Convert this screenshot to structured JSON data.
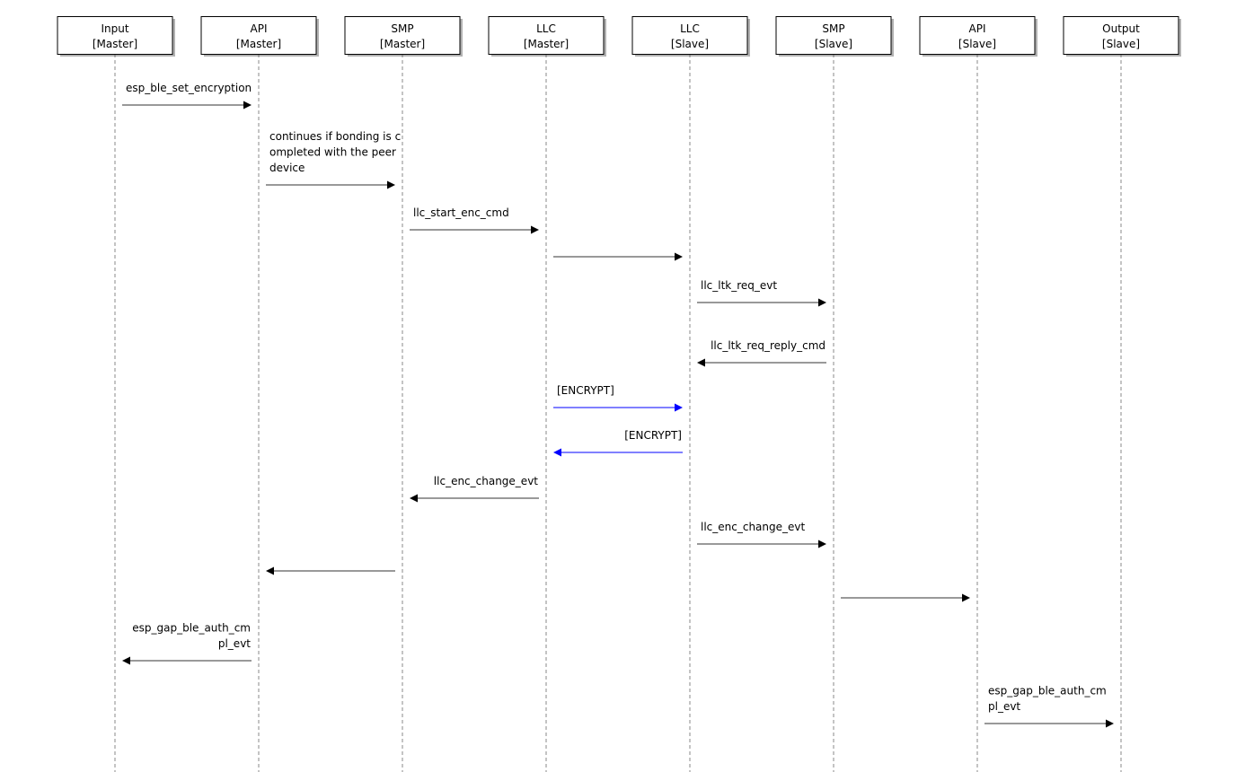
{
  "participants": [
    {
      "name": "Input",
      "role": "[Master]"
    },
    {
      "name": "API",
      "role": "[Master]"
    },
    {
      "name": "SMP",
      "role": "[Master]"
    },
    {
      "name": "LLC",
      "role": "[Master]"
    },
    {
      "name": "LLC",
      "role": "[Slave]"
    },
    {
      "name": "SMP",
      "role": "[Slave]"
    },
    {
      "name": "API",
      "role": "[Slave]"
    },
    {
      "name": "Output",
      "role": "[Slave]"
    }
  ],
  "colors": {
    "default": "#000000",
    "encrypt": "#0000ff"
  },
  "messages": [
    {
      "from": 0,
      "to": 1,
      "lines": [
        "esp_ble_set_encryption"
      ],
      "color": "default"
    },
    {
      "from": 1,
      "to": 2,
      "lines": [
        "continues if bonding is c",
        "ompleted with the peer",
        "device"
      ],
      "color": "default"
    },
    {
      "from": 2,
      "to": 3,
      "lines": [
        "llc_start_enc_cmd"
      ],
      "color": "default"
    },
    {
      "from": 3,
      "to": 4,
      "lines": [],
      "color": "default"
    },
    {
      "from": 4,
      "to": 5,
      "lines": [
        "llc_ltk_req_evt"
      ],
      "color": "default"
    },
    {
      "from": 5,
      "to": 4,
      "lines": [
        "llc_ltk_req_reply_cmd"
      ],
      "color": "default"
    },
    {
      "from": 3,
      "to": 4,
      "lines": [
        "[ENCRYPT]"
      ],
      "color": "encrypt"
    },
    {
      "from": 4,
      "to": 3,
      "lines": [
        "[ENCRYPT]"
      ],
      "color": "encrypt"
    },
    {
      "from": 3,
      "to": 2,
      "lines": [
        "llc_enc_change_evt"
      ],
      "color": "default"
    },
    {
      "from": 4,
      "to": 5,
      "lines": [
        "llc_enc_change_evt"
      ],
      "color": "default"
    },
    {
      "from": 2,
      "to": 1,
      "lines": [],
      "color": "default"
    },
    {
      "from": 5,
      "to": 6,
      "lines": [],
      "color": "default"
    },
    {
      "from": 1,
      "to": 0,
      "lines": [
        "esp_gap_ble_auth_cm",
        "pl_evt"
      ],
      "color": "default"
    },
    {
      "from": 6,
      "to": 7,
      "lines": [
        "esp_gap_ble_auth_cm",
        "pl_evt"
      ],
      "color": "default"
    }
  ]
}
